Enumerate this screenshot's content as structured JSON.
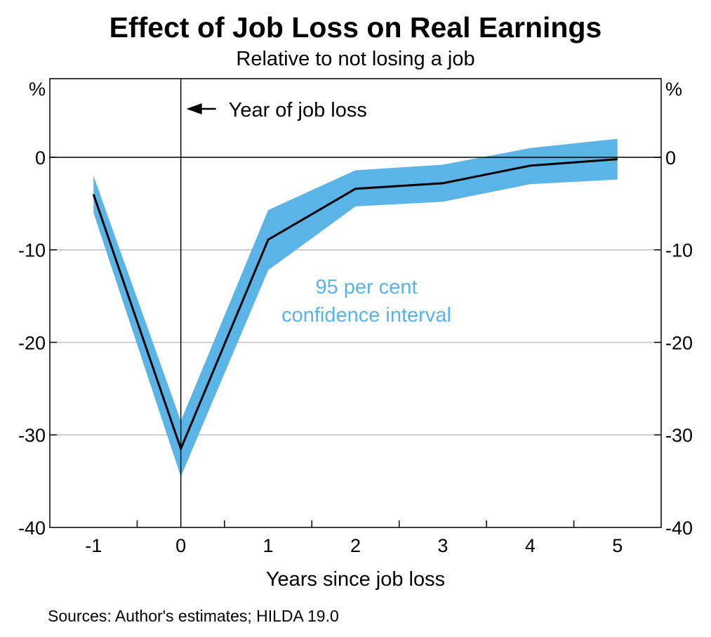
{
  "chart_data": {
    "type": "line",
    "title": "Effect of Job Loss on Real Earnings",
    "subtitle": "Relative to not losing a job",
    "xlabel": "Years since job loss",
    "ylabel_left": "%",
    "ylabel_right": "%",
    "source": "Sources: Author's estimates; HILDA 19.0",
    "x": [
      -1,
      0,
      1,
      2,
      3,
      4,
      5
    ],
    "x_tick_labels": [
      "-1",
      "0",
      "1",
      "2",
      "3",
      "4",
      "5"
    ],
    "xlim": [
      -1.5,
      5.5
    ],
    "ylim": [
      -40,
      8.5
    ],
    "y_ticks": [
      0,
      -10,
      -20,
      -30,
      -40
    ],
    "y_tick_labels": [
      "0",
      "-10",
      "-20",
      "-30",
      "-40"
    ],
    "grid": true,
    "series": [
      {
        "values": [
          -4.0,
          -31.5,
          -8.9,
          -3.4,
          -2.8,
          -0.9,
          -0.2
        ]
      }
    ],
    "confidence_interval": {
      "label": "95 per cent confidence interval",
      "label_lines": [
        "95 per cent",
        "confidence interval"
      ],
      "upper": [
        -2.0,
        -28.5,
        -5.7,
        -1.4,
        -0.8,
        1.0,
        2.0
      ],
      "lower": [
        -6.0,
        -34.5,
        -12.2,
        -5.3,
        -4.8,
        -2.9,
        -2.4
      ]
    },
    "annotation": {
      "text": "Year of job loss",
      "x": 0
    },
    "colors": {
      "band": "#5ab4e5",
      "line": "#000000",
      "grid": "#bfbfbf",
      "ci_label": "#5ab4e5"
    }
  }
}
